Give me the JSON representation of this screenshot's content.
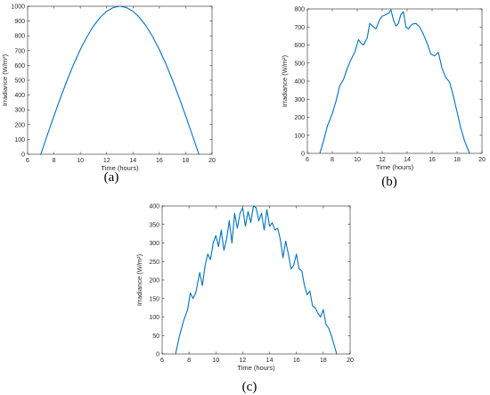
{
  "colors": {
    "line": "#0072bd",
    "axis": "#262626"
  },
  "chart_data": [
    {
      "panel_label": "(a)",
      "type": "line",
      "xlabel": "Time (hours)",
      "ylabel": "Irradiance (W/m²)",
      "xlim": [
        6,
        20
      ],
      "ylim": [
        0,
        1000
      ],
      "xticks": [
        6,
        8,
        10,
        12,
        14,
        16,
        18,
        20
      ],
      "yticks": [
        0,
        100,
        200,
        300,
        400,
        500,
        600,
        700,
        800,
        900,
        1000
      ],
      "series": [
        {
          "x": [
            7.0,
            7.5,
            8.0,
            8.5,
            9.0,
            9.5,
            10.0,
            10.5,
            11.0,
            11.5,
            12.0,
            12.5,
            13.0,
            13.5,
            14.0,
            14.5,
            15.0,
            15.5,
            16.0,
            16.5,
            17.0,
            17.5,
            18.0,
            18.5,
            19.0
          ],
          "y": [
            0,
            131,
            259,
            383,
            500,
            609,
            707,
            793,
            866,
            924,
            966,
            991,
            1000,
            991,
            966,
            924,
            866,
            793,
            707,
            609,
            500,
            383,
            259,
            131,
            0
          ]
        }
      ]
    },
    {
      "panel_label": "(b)",
      "type": "line",
      "xlabel": "Time (hours)",
      "ylabel": "Irradiance (W/m²)",
      "xlim": [
        6,
        20
      ],
      "ylim": [
        0,
        800
      ],
      "xticks": [
        6,
        8,
        10,
        12,
        14,
        16,
        18,
        20
      ],
      "yticks": [
        0,
        100,
        200,
        300,
        400,
        500,
        600,
        700,
        800
      ],
      "series": [
        {
          "x": [
            7.0,
            7.3,
            7.6,
            8.0,
            8.3,
            8.6,
            8.9,
            9.2,
            9.5,
            9.8,
            10.1,
            10.3,
            10.5,
            10.8,
            11.0,
            11.3,
            11.5,
            11.8,
            12.0,
            12.2,
            12.5,
            12.7,
            12.9,
            13.1,
            13.3,
            13.5,
            13.7,
            13.9,
            14.1,
            14.4,
            14.7,
            15.0,
            15.3,
            15.6,
            15.9,
            16.2,
            16.5,
            16.8,
            17.1,
            17.4,
            17.7,
            18.0,
            18.3,
            18.6,
            19.0
          ],
          "y": [
            0,
            70,
            150,
            220,
            290,
            375,
            410,
            470,
            520,
            560,
            630,
            610,
            600,
            640,
            720,
            700,
            690,
            740,
            760,
            765,
            775,
            795,
            740,
            705,
            720,
            770,
            785,
            700,
            690,
            715,
            720,
            700,
            660,
            610,
            550,
            540,
            560,
            470,
            420,
            395,
            320,
            230,
            140,
            70,
            0
          ]
        }
      ]
    },
    {
      "panel_label": "(c)",
      "type": "line",
      "xlabel": "Time (hours)",
      "ylabel": "Irradiance (W/m²)",
      "xlim": [
        6,
        20
      ],
      "ylim": [
        0,
        400
      ],
      "xticks": [
        6,
        8,
        10,
        12,
        14,
        16,
        18,
        20
      ],
      "yticks": [
        0,
        50,
        100,
        150,
        200,
        250,
        300,
        350,
        400
      ],
      "series": [
        {
          "x": [
            7.0,
            7.3,
            7.6,
            7.9,
            8.1,
            8.3,
            8.5,
            8.8,
            9.0,
            9.2,
            9.4,
            9.6,
            9.8,
            10.0,
            10.2,
            10.4,
            10.6,
            10.8,
            11.0,
            11.2,
            11.4,
            11.6,
            11.8,
            12.0,
            12.2,
            12.4,
            12.6,
            12.8,
            13.0,
            13.2,
            13.4,
            13.6,
            13.8,
            14.0,
            14.2,
            14.4,
            14.6,
            14.8,
            15.0,
            15.2,
            15.4,
            15.6,
            15.8,
            16.0,
            16.2,
            16.4,
            16.6,
            16.8,
            17.0,
            17.2,
            17.4,
            17.6,
            17.8,
            18.0,
            18.2,
            18.4,
            18.6,
            18.8,
            19.0
          ],
          "y": [
            0,
            50,
            90,
            120,
            165,
            150,
            165,
            220,
            185,
            240,
            270,
            255,
            300,
            320,
            290,
            335,
            280,
            310,
            360,
            300,
            380,
            340,
            380,
            395,
            345,
            385,
            355,
            400,
            395,
            360,
            380,
            335,
            390,
            345,
            355,
            335,
            340,
            310,
            260,
            305,
            270,
            230,
            240,
            270,
            230,
            225,
            185,
            160,
            170,
            130,
            125,
            110,
            100,
            120,
            80,
            70,
            50,
            25,
            0
          ]
        }
      ]
    }
  ]
}
